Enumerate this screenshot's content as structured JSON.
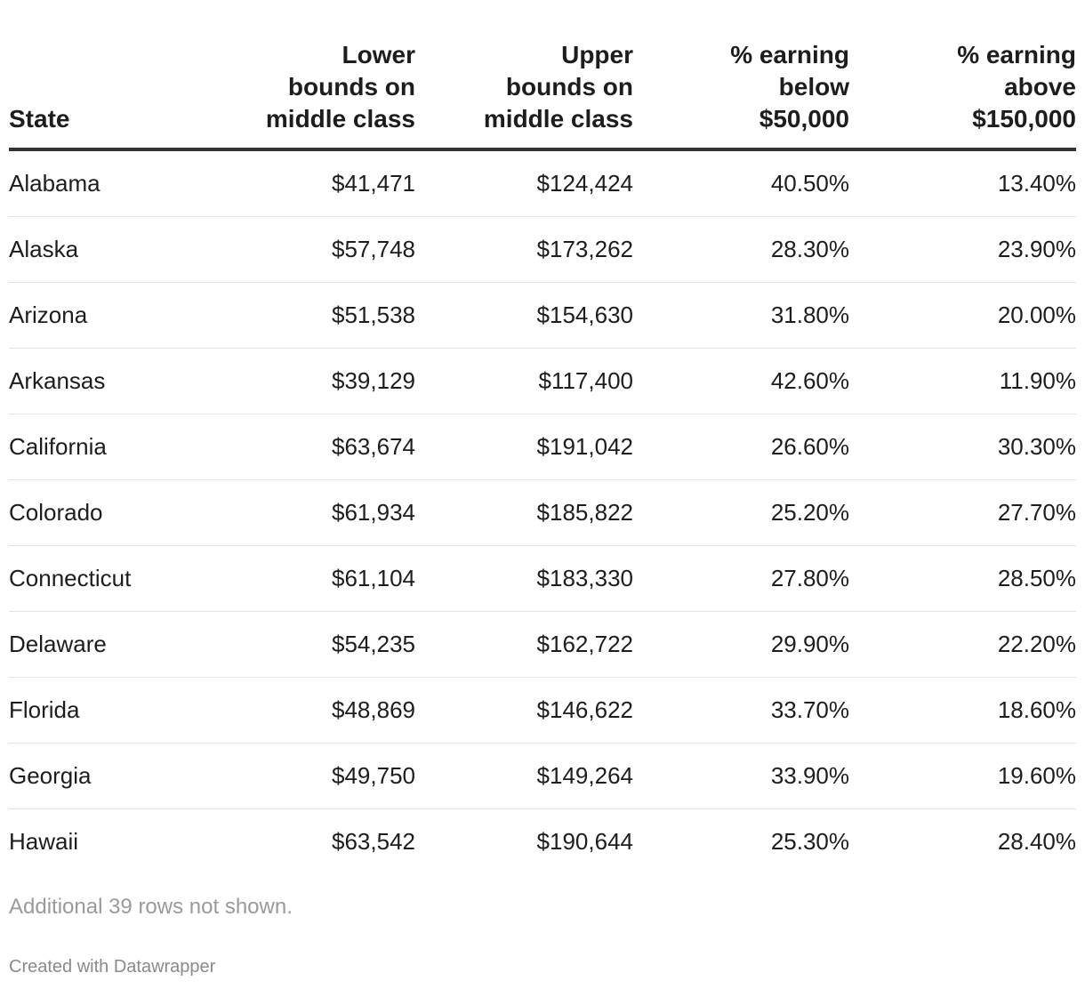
{
  "chart_data": {
    "type": "table",
    "columns": [
      [
        "State"
      ],
      [
        "Lower",
        "bounds on",
        "middle class"
      ],
      [
        "Upper",
        "bounds on",
        "middle class"
      ],
      [
        "% earning",
        "below",
        "$50,000"
      ],
      [
        "% earning",
        "above",
        "$150,000"
      ]
    ],
    "rows": [
      [
        "Alabama",
        "$41,471",
        "$124,424",
        "40.50%",
        "13.40%"
      ],
      [
        "Alaska",
        "$57,748",
        "$173,262",
        "28.30%",
        "23.90%"
      ],
      [
        "Arizona",
        "$51,538",
        "$154,630",
        "31.80%",
        "20.00%"
      ],
      [
        "Arkansas",
        "$39,129",
        "$117,400",
        "42.60%",
        "11.90%"
      ],
      [
        "California",
        "$63,674",
        "$191,042",
        "26.60%",
        "30.30%"
      ],
      [
        "Colorado",
        "$61,934",
        "$185,822",
        "25.20%",
        "27.70%"
      ],
      [
        "Connecticut",
        "$61,104",
        "$183,330",
        "27.80%",
        "28.50%"
      ],
      [
        "Delaware",
        "$54,235",
        "$162,722",
        "29.90%",
        "22.20%"
      ],
      [
        "Florida",
        "$48,869",
        "$146,622",
        "33.70%",
        "18.60%"
      ],
      [
        "Georgia",
        "$49,750",
        "$149,264",
        "33.90%",
        "19.60%"
      ],
      [
        "Hawaii",
        "$63,542",
        "$190,644",
        "25.30%",
        "28.40%"
      ]
    ],
    "note": "Additional 39 rows not shown.",
    "credit": "Created with Datawrapper"
  }
}
